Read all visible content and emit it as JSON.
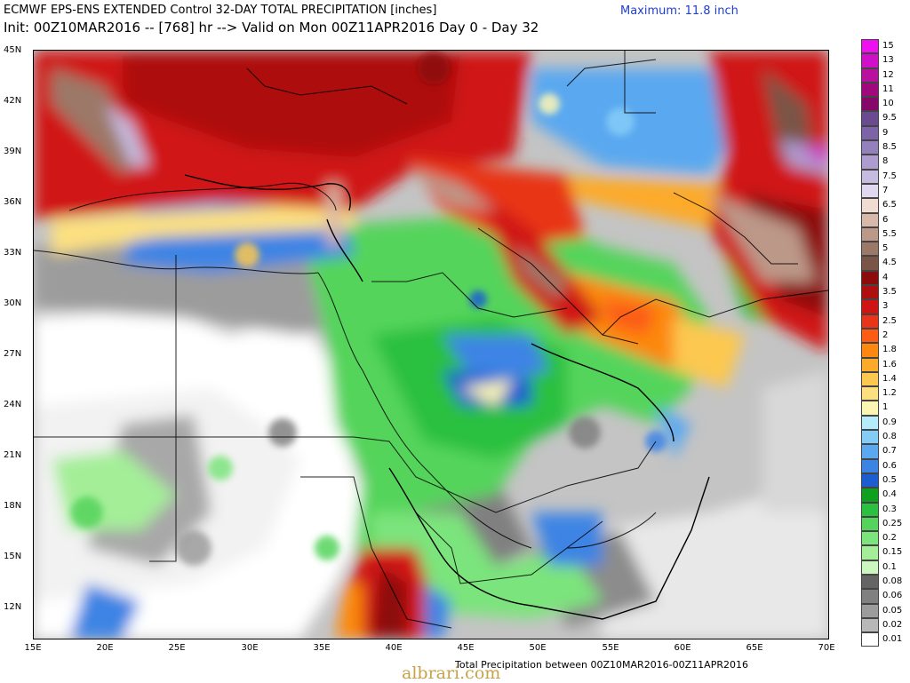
{
  "header": {
    "title_line1": "ECMWF EPS-ENS EXTENDED Control 32-DAY TOTAL PRECIPITATION [inches]",
    "title_line2": "Init: 00Z10MAR2016 -- [768] hr --> Valid on Mon 00Z11APR2016  Day 0 - Day 32",
    "maximum": "Maximum: 11.8 inch"
  },
  "axes": {
    "lat_labels": [
      "45N",
      "42N",
      "39N",
      "36N",
      "33N",
      "30N",
      "27N",
      "24N",
      "21N",
      "18N",
      "15N",
      "12N"
    ],
    "lon_labels": [
      "15E",
      "20E",
      "25E",
      "30E",
      "35E",
      "40E",
      "45E",
      "50E",
      "55E",
      "60E",
      "65E",
      "70E"
    ]
  },
  "legend": {
    "items": [
      {
        "label": "15",
        "color": "#ee10ee"
      },
      {
        "label": "13",
        "color": "#d010c8"
      },
      {
        "label": "12",
        "color": "#b8109f"
      },
      {
        "label": "11",
        "color": "#a0087e"
      },
      {
        "label": "10",
        "color": "#86066a"
      },
      {
        "label": "9.5",
        "color": "#6a4a90"
      },
      {
        "label": "9",
        "color": "#7d64a8"
      },
      {
        "label": "8.5",
        "color": "#9480bc"
      },
      {
        "label": "8",
        "color": "#ad9ccf"
      },
      {
        "label": "7.5",
        "color": "#c6bce0"
      },
      {
        "label": "7",
        "color": "#e0d8ee"
      },
      {
        "label": "6.5",
        "color": "#f0dcd0"
      },
      {
        "label": "6",
        "color": "#d8b8a8"
      },
      {
        "label": "5.5",
        "color": "#bc9888"
      },
      {
        "label": "5",
        "color": "#9c7868"
      },
      {
        "label": "4.5",
        "color": "#7a5446"
      },
      {
        "label": "4",
        "color": "#8c0c0c"
      },
      {
        "label": "3.5",
        "color": "#ae1010"
      },
      {
        "label": "3",
        "color": "#d01414"
      },
      {
        "label": "2.5",
        "color": "#e83418"
      },
      {
        "label": "2",
        "color": "#fc5c14"
      },
      {
        "label": "1.8",
        "color": "#fc8810"
      },
      {
        "label": "1.6",
        "color": "#fcaa2a"
      },
      {
        "label": "1.4",
        "color": "#fcc850"
      },
      {
        "label": "1.2",
        "color": "#fce080"
      },
      {
        "label": "1",
        "color": "#fcf6b4"
      },
      {
        "label": "0.9",
        "color": "#b4ecfc"
      },
      {
        "label": "0.8",
        "color": "#84ccf8"
      },
      {
        "label": "0.7",
        "color": "#5aa8f0"
      },
      {
        "label": "0.6",
        "color": "#3c84e4"
      },
      {
        "label": "0.5",
        "color": "#1c5ed0"
      },
      {
        "label": "0.4",
        "color": "#10a020"
      },
      {
        "label": "0.3",
        "color": "#2cc040"
      },
      {
        "label": "0.25",
        "color": "#54d45c"
      },
      {
        "label": "0.2",
        "color": "#7ce47c"
      },
      {
        "label": "0.15",
        "color": "#a4ee98"
      },
      {
        "label": "0.1",
        "color": "#ccf6c0"
      },
      {
        "label": "0.08",
        "color": "#646464"
      },
      {
        "label": "0.06",
        "color": "#808080"
      },
      {
        "label": "0.05",
        "color": "#9c9c9c"
      },
      {
        "label": "0.02",
        "color": "#b8b8b8"
      },
      {
        "label": "0.01",
        "color": "#ffffff"
      }
    ]
  },
  "footer": {
    "caption": "Total Precipitation between 00Z10MAR2016-00Z11APR2016",
    "watermark": "albrari.com"
  }
}
